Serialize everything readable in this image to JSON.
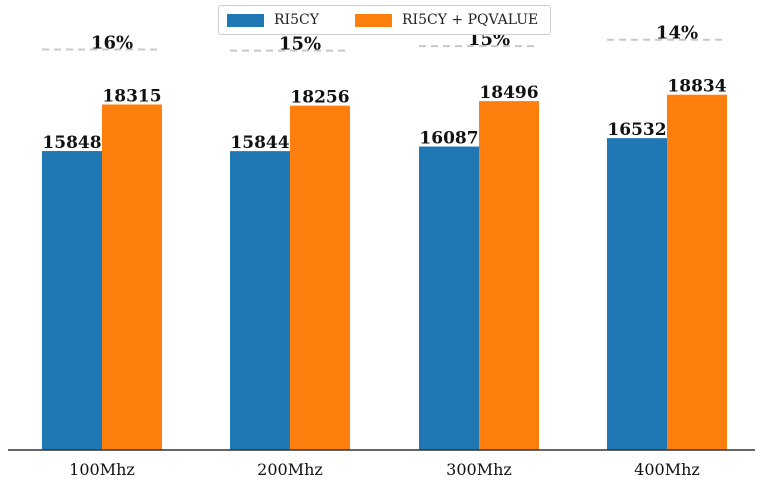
{
  "chart_data": {
    "type": "bar",
    "categories": [
      "100Mhz",
      "200Mhz",
      "300Mhz",
      "400Mhz"
    ],
    "series": [
      {
        "name": "RI5CY",
        "values": [
          15848,
          15844,
          16087,
          16532
        ],
        "color": "#1f77b4"
      },
      {
        "name": "RI5CY + PQVALUE",
        "values": [
          18315,
          18256,
          18496,
          18834
        ],
        "color": "#ff7f0e"
      }
    ],
    "improvement_labels": [
      "16%",
      "15%",
      "15%",
      "14%"
    ],
    "legend_position": "top-center",
    "ylim": [
      0,
      22000
    ],
    "grid": false,
    "reference_line_color": "#c8c8c8"
  }
}
